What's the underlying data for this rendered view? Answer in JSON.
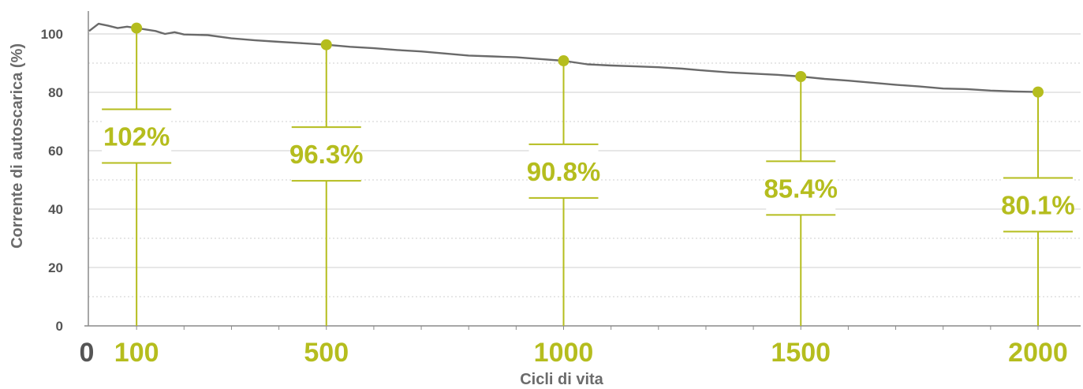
{
  "colors": {
    "accent": "#b5bd1e",
    "curve": "#6a6a6a",
    "grid": "#cfcfcf",
    "axis": "#8a8a8a",
    "text": "#555555"
  },
  "chart_data": {
    "type": "line",
    "xlabel": "Cicli di vita",
    "ylabel": "Corrente di autoscarica (%)",
    "xlim": [
      0,
      2100
    ],
    "ylim": [
      0,
      108
    ],
    "grid": true,
    "yticks": [
      "0",
      "20",
      "40",
      "60",
      "80",
      "100"
    ],
    "xticks": [
      "0",
      "100",
      "500",
      "1000",
      "1500",
      "2000"
    ],
    "series": [
      {
        "x": [
          0,
          20,
          40,
          60,
          80,
          100,
          140,
          160,
          180,
          200,
          250,
          300,
          350,
          400,
          450,
          500,
          550,
          600,
          650,
          700,
          750,
          800,
          850,
          900,
          950,
          1000,
          1050,
          1100,
          1150,
          1200,
          1250,
          1300,
          1350,
          1400,
          1450,
          1500,
          1550,
          1600,
          1650,
          1700,
          1750,
          1800,
          1850,
          1900,
          1950,
          2000
        ],
        "y": [
          101,
          103.5,
          102.8,
          102,
          102.5,
          102,
          101,
          100,
          100.6,
          99.8,
          99.6,
          98.5,
          97.8,
          97.3,
          96.8,
          96.3,
          95.6,
          95.1,
          94.5,
          94,
          93.3,
          92.6,
          92.3,
          92,
          91.4,
          90.8,
          89.6,
          89.2,
          88.9,
          88.6,
          88.1,
          87.4,
          86.8,
          86.4,
          86,
          85.4,
          84.6,
          84,
          83.3,
          82.6,
          82,
          81.3,
          81.1,
          80.6,
          80.3,
          80.1
        ]
      }
    ],
    "markers": [
      {
        "x": 100,
        "y": 102,
        "label": "102%"
      },
      {
        "x": 500,
        "y": 96.3,
        "label": "96.3%"
      },
      {
        "x": 1000,
        "y": 90.8,
        "label": "90.8%"
      },
      {
        "x": 1500,
        "y": 85.4,
        "label": "85.4%"
      },
      {
        "x": 2000,
        "y": 80.1,
        "label": "80.1%"
      }
    ]
  }
}
